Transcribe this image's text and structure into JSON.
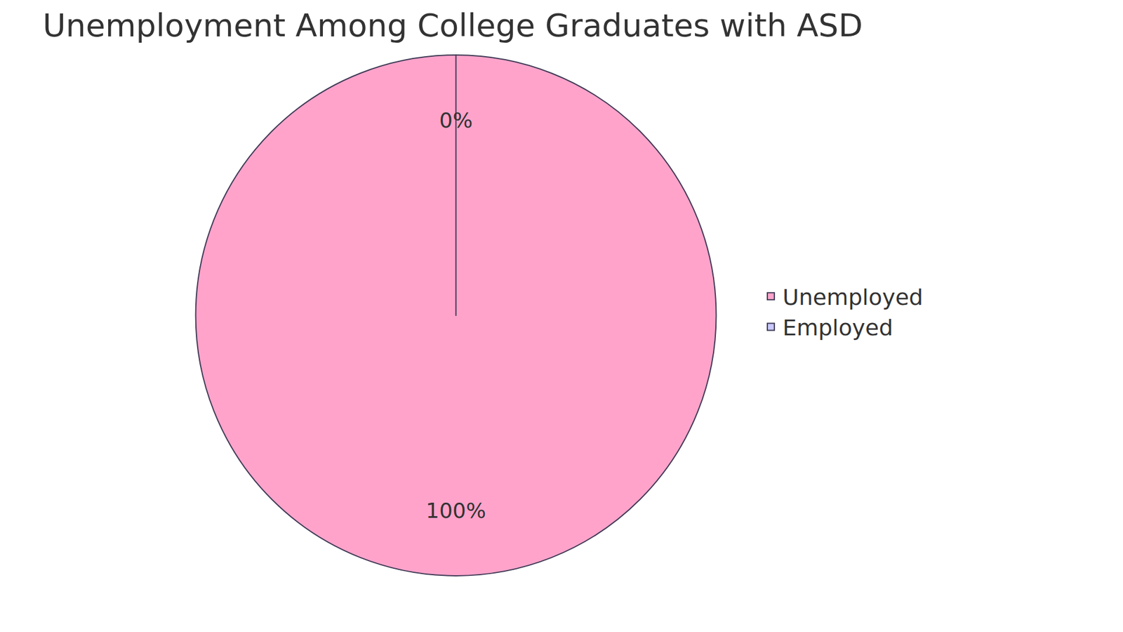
{
  "chart_data": {
    "type": "pie",
    "title": "Unemployment Among College Graduates with ASD",
    "categories": [
      "Unemployed",
      "Employed"
    ],
    "values": [
      100,
      0
    ],
    "value_labels": [
      "100%",
      "0%"
    ],
    "colors": [
      "#ffa3cb",
      "#c8c8ff"
    ],
    "data_labels": true,
    "legend": "right"
  }
}
